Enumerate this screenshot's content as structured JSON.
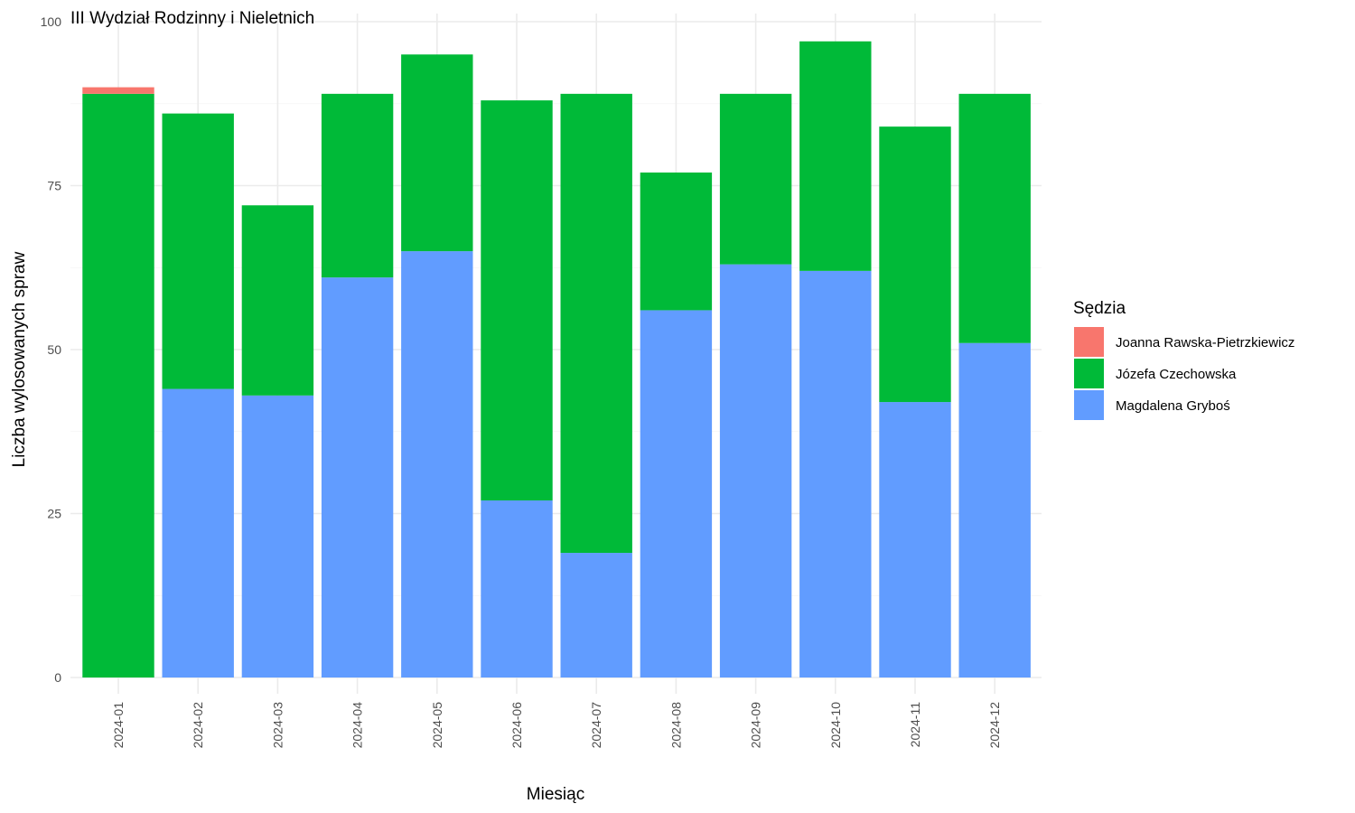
{
  "chart_data": {
    "type": "bar",
    "stacked": true,
    "title": "III Wydział Rodzinny i Nieletnich",
    "xlabel": "Miesiąc",
    "ylabel": "Liczba wylosowanych spraw",
    "ylim": [
      0,
      100
    ],
    "yticks": [
      0,
      25,
      50,
      75,
      100
    ],
    "grid": true,
    "legend": {
      "title": "Sędzia",
      "position": "right"
    },
    "categories": [
      "2024-01",
      "2024-02",
      "2024-03",
      "2024-04",
      "2024-05",
      "2024-06",
      "2024-07",
      "2024-08",
      "2024-09",
      "2024-10",
      "2024-11",
      "2024-12"
    ],
    "series": [
      {
        "name": "Joanna Rawska-Pietrzkiewicz",
        "color": "#F8766D",
        "values": [
          1,
          0,
          0,
          0,
          0,
          0,
          0,
          0,
          0,
          0,
          0,
          0
        ]
      },
      {
        "name": "Józefa Czechowska",
        "color": "#00BA38",
        "values": [
          89,
          42,
          29,
          28,
          30,
          61,
          70,
          21,
          26,
          35,
          42,
          38
        ]
      },
      {
        "name": "Magdalena Gryboś",
        "color": "#619CFF",
        "values": [
          0,
          44,
          43,
          61,
          65,
          27,
          19,
          56,
          63,
          62,
          42,
          51
        ]
      }
    ]
  }
}
